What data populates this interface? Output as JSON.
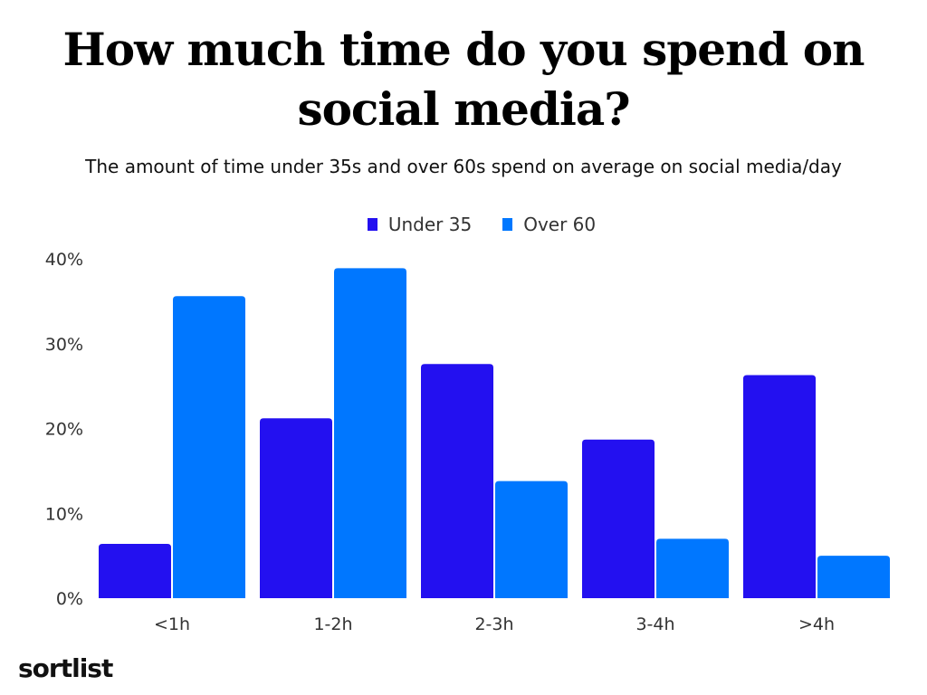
{
  "chart_data": {
    "type": "bar",
    "title": "How much time do you spend on social media?",
    "subtitle": "The amount of time under 35s and over 60s spend on average on social media/day",
    "categories": [
      "<1h",
      "1-2h",
      "2-3h",
      "3-4h",
      ">4h"
    ],
    "series": [
      {
        "name": "Under 35",
        "color": "#2310F0",
        "values": [
          6.4,
          21.2,
          27.6,
          18.7,
          26.3
        ]
      },
      {
        "name": "Over 60",
        "color": "#0077FF",
        "values": [
          35.6,
          38.9,
          13.8,
          7.0,
          5.0
        ]
      }
    ],
    "ylim": [
      0,
      40
    ],
    "yticks": [
      "0%",
      "10%",
      "20%",
      "30%",
      "40%"
    ],
    "ytick_values": [
      0,
      10,
      20,
      30,
      40
    ],
    "xlabel": "",
    "ylabel": "",
    "grid": false,
    "legend": "top-center"
  },
  "logo": "sortlist"
}
